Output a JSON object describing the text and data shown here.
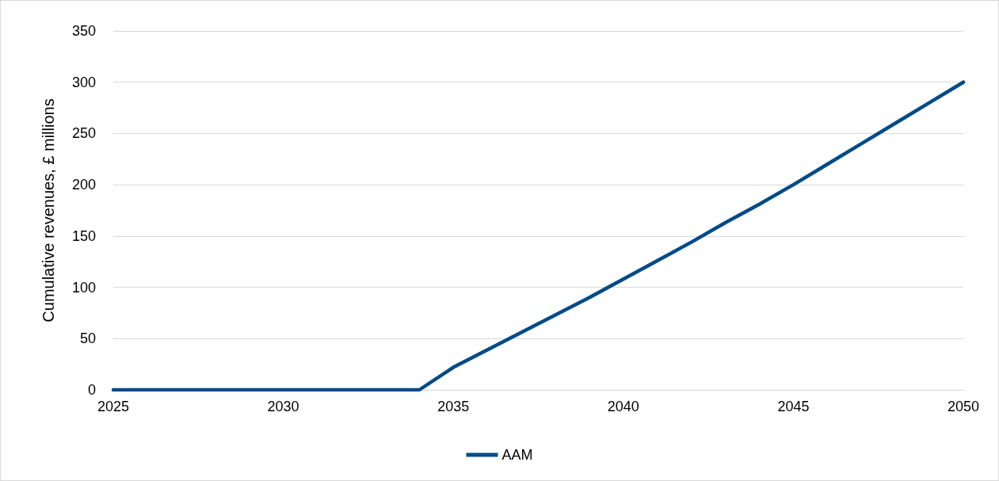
{
  "chart_data": {
    "type": "line",
    "ylabel": "Cumulative revenues, £ millions",
    "x": [
      2025,
      2026,
      2027,
      2028,
      2029,
      2030,
      2031,
      2032,
      2033,
      2034,
      2035,
      2036,
      2037,
      2038,
      2039,
      2040,
      2041,
      2042,
      2043,
      2044,
      2045,
      2046,
      2047,
      2048,
      2049,
      2050
    ],
    "series": [
      {
        "name": "AAM",
        "color": "#004b87",
        "values": [
          0,
          0,
          0,
          0,
          0,
          0,
          0,
          0,
          0,
          0,
          22,
          39,
          56,
          73,
          90,
          108,
          126,
          144,
          163,
          181,
          200,
          220,
          240,
          260,
          280,
          300
        ]
      }
    ],
    "xlim": [
      2025,
      2050
    ],
    "xticks": [
      2025,
      2030,
      2035,
      2040,
      2045,
      2050
    ],
    "ylim": [
      0,
      350
    ],
    "yticks": [
      0,
      50,
      100,
      150,
      200,
      250,
      300,
      350
    ],
    "grid": "y",
    "legend": "bottom",
    "marker": "none",
    "line_style": "solid"
  }
}
